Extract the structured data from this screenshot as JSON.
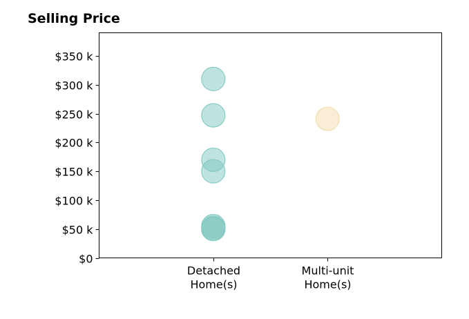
{
  "chart_data": {
    "type": "scatter",
    "title": "Selling Price",
    "xlabel": "",
    "ylabel": "",
    "categories": [
      [
        "Detached",
        "Home(s)"
      ],
      [
        "Multi-unit",
        "Home(s)"
      ]
    ],
    "xlim": [
      -1,
      2
    ],
    "ylim": [
      0,
      390000
    ],
    "yticks": [
      0,
      50000,
      100000,
      150000,
      200000,
      250000,
      300000,
      350000
    ],
    "ytick_labels": [
      "$0",
      "$50 k",
      "$100 k",
      "$150 k",
      "$200 k",
      "$250 k",
      "$300 k",
      "$350 k"
    ],
    "grid": false,
    "legend": "none",
    "series": [
      {
        "category_index": 0,
        "color": "#7fc8c0",
        "values": [
          310000,
          247000,
          170000,
          150000,
          55000,
          52000,
          50000
        ]
      },
      {
        "category_index": 1,
        "color": "#f3ddab",
        "values": [
          241000
        ]
      }
    ]
  }
}
